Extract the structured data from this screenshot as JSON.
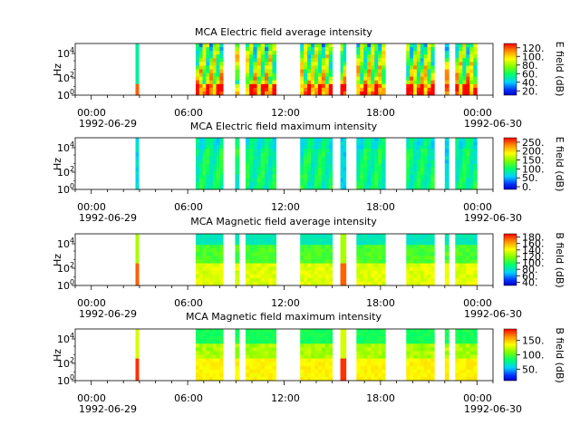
{
  "chart_data": [
    {
      "type": "heatmap",
      "title": "MCA  Electric field average intensity",
      "ylabel": "Hz",
      "colorbar_label": "E field (dB)",
      "colorbar_ticks": [
        "20.",
        "40.",
        "60.",
        "80.",
        "100.",
        "120."
      ],
      "colorbar_range": [
        10,
        130
      ],
      "style": "avg_e"
    },
    {
      "type": "heatmap",
      "title": "MCA  Electric field maximum intensity",
      "ylabel": "Hz",
      "colorbar_label": "E field (dB)",
      "colorbar_ticks": [
        "0.",
        "50.",
        "100.",
        "150.",
        "200.",
        "250."
      ],
      "colorbar_range": [
        -15,
        275
      ],
      "style": "max_e"
    },
    {
      "type": "heatmap",
      "title": "MCA  Magnetic field average intensity",
      "ylabel": "Hz",
      "colorbar_label": "B field (dB)",
      "colorbar_ticks": [
        "40.",
        "60.",
        "80.",
        "100.",
        "120.",
        "140.",
        "160.",
        "180."
      ],
      "colorbar_range": [
        30,
        190
      ],
      "style": "avg_b"
    },
    {
      "type": "heatmap",
      "title": "MCA  Magnetic field maximum intensity",
      "ylabel": "Hz",
      "colorbar_label": "B field (dB)",
      "colorbar_ticks": [
        "50.",
        "100.",
        "150."
      ],
      "colorbar_range": [
        10,
        190
      ],
      "style": "max_b"
    }
  ],
  "shared_axes": {
    "x_range_hours": [
      -1,
      25
    ],
    "x_tick_hours": [
      0,
      6,
      12,
      18,
      24
    ],
    "x_tick_labels": [
      "00:00",
      "06:00",
      "12:00",
      "18:00",
      "00:00"
    ],
    "x_date_labels": [
      "1992-06-29",
      "1992-06-30"
    ],
    "y_ticks": [
      "10",
      "10",
      "10"
    ],
    "y_tick_exponents": [
      "0",
      "2",
      "4"
    ]
  },
  "data_segments_hours": [
    [
      2.75,
      2.95
    ],
    [
      6.5,
      8.2
    ],
    [
      8.95,
      9.2
    ],
    [
      9.6,
      11.5
    ],
    [
      13.0,
      15.0
    ],
    [
      15.5,
      15.85
    ],
    [
      16.5,
      18.3
    ],
    [
      19.6,
      21.35
    ],
    [
      22.0,
      22.25
    ],
    [
      22.65,
      24.0
    ]
  ]
}
